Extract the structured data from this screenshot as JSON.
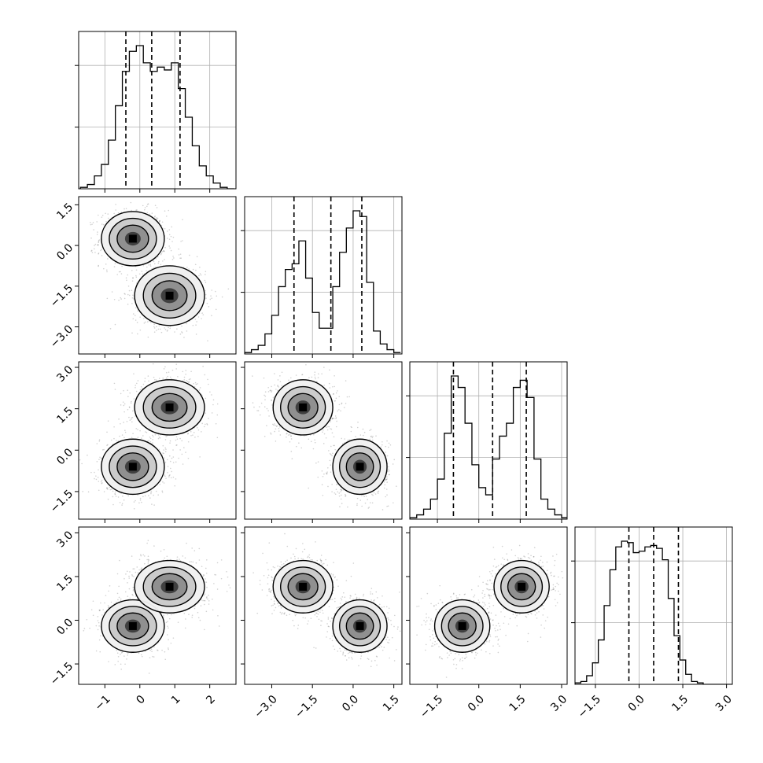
{
  "chart_data": {
    "type": "corner",
    "title": "",
    "params": [
      "",
      "",
      "",
      ""
    ],
    "quantiles": [
      0.16,
      0.5,
      0.84
    ],
    "ranges": [
      [
        -1.75,
        2.75
      ],
      [
        -4.0,
        1.8
      ],
      [
        -2.5,
        3.2
      ],
      [
        -2.2,
        3.2
      ]
    ],
    "ticks": {
      "p0": [
        "-1",
        "0",
        "1",
        "2"
      ],
      "p1": [
        "-3.0",
        "-1.5",
        "0.0",
        "1.5"
      ],
      "p2": [
        "-1.5",
        "0.0",
        "1.5",
        "3.0"
      ],
      "p3": [
        "-1.5",
        "0.0",
        "1.5",
        "3.0"
      ]
    },
    "tick_values": {
      "p0": [
        -1,
        0,
        1,
        2
      ],
      "p1": [
        -3.0,
        -1.5,
        0.0,
        1.5
      ],
      "p2": [
        -1.5,
        0.0,
        1.5,
        3.0
      ],
      "p3": [
        -1.5,
        0.0,
        1.5,
        3.0
      ]
    },
    "grid": true,
    "clusters": [
      {
        "weight": 0.5,
        "mean": [
          -0.2,
          0.25,
          -0.6,
          -0.2
        ],
        "sd": [
          0.45,
          0.5,
          0.5,
          0.45
        ]
      },
      {
        "weight": 0.5,
        "mean": [
          0.85,
          -1.85,
          1.55,
          1.15
        ],
        "sd": [
          0.5,
          0.55,
          0.5,
          0.45
        ]
      }
    ],
    "marginals": [
      {
        "edges": [
          -1.7,
          -1.5,
          -1.3,
          -1.1,
          -0.9,
          -0.7,
          -0.5,
          -0.3,
          -0.1,
          0.1,
          0.3,
          0.5,
          0.7,
          0.9,
          1.1,
          1.3,
          1.5,
          1.7,
          1.9,
          2.1,
          2.3,
          2.5,
          2.7
        ],
        "counts": [
          0.01,
          0.03,
          0.09,
          0.17,
          0.34,
          0.58,
          0.82,
          0.96,
          1.0,
          0.88,
          0.82,
          0.85,
          0.83,
          0.88,
          0.7,
          0.5,
          0.3,
          0.16,
          0.09,
          0.04,
          0.01,
          0.0
        ],
        "quantiles": [
          -0.4,
          0.34,
          1.15
        ]
      },
      {
        "edges": [
          -4.0,
          -3.75,
          -3.5,
          -3.25,
          -3.0,
          -2.75,
          -2.5,
          -2.25,
          -2.0,
          -1.75,
          -1.5,
          -1.25,
          -1.0,
          -0.75,
          -0.5,
          -0.25,
          0.0,
          0.25,
          0.5,
          0.75,
          1.0,
          1.25,
          1.5,
          1.75
        ],
        "counts": [
          0.01,
          0.03,
          0.06,
          0.14,
          0.27,
          0.47,
          0.59,
          0.63,
          0.79,
          0.53,
          0.29,
          0.18,
          0.18,
          0.47,
          0.71,
          0.88,
          1.0,
          0.96,
          0.5,
          0.16,
          0.07,
          0.03,
          0.01
        ],
        "quantiles": [
          -2.18,
          -0.82,
          0.32
        ]
      },
      {
        "edges": [
          -2.5,
          -2.25,
          -2.0,
          -1.75,
          -1.5,
          -1.25,
          -1.0,
          -0.75,
          -0.5,
          -0.25,
          0.0,
          0.25,
          0.5,
          0.75,
          1.0,
          1.25,
          1.5,
          1.75,
          2.0,
          2.25,
          2.5,
          2.75,
          3.0,
          3.25
        ],
        "counts": [
          0.01,
          0.03,
          0.07,
          0.14,
          0.28,
          0.6,
          1.0,
          0.92,
          0.67,
          0.38,
          0.22,
          0.17,
          0.42,
          0.58,
          0.67,
          0.92,
          0.97,
          0.85,
          0.42,
          0.14,
          0.07,
          0.03,
          0.01
        ],
        "quantiles": [
          -0.92,
          0.5,
          1.72
        ]
      },
      {
        "edges": [
          -2.2,
          -2.0,
          -1.8,
          -1.6,
          -1.4,
          -1.2,
          -1.0,
          -0.8,
          -0.6,
          -0.4,
          -0.2,
          0.0,
          0.2,
          0.4,
          0.6,
          0.8,
          1.0,
          1.2,
          1.4,
          1.6,
          1.8,
          2.0,
          2.2,
          2.4,
          2.6,
          2.8,
          3.0,
          3.2
        ],
        "counts": [
          0.01,
          0.02,
          0.06,
          0.15,
          0.31,
          0.55,
          0.8,
          0.96,
          1.0,
          0.99,
          0.92,
          0.93,
          0.96,
          0.97,
          0.95,
          0.87,
          0.6,
          0.34,
          0.17,
          0.07,
          0.02,
          0.01,
          0.0,
          0.0,
          0.0,
          0.0,
          0.0
        ],
        "quantiles": [
          -0.35,
          0.5,
          1.35
        ]
      }
    ]
  }
}
